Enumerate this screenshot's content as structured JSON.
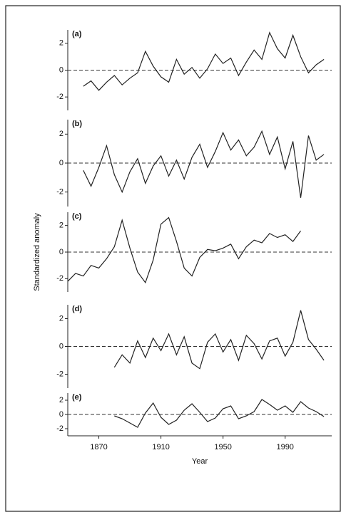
{
  "chart_data": [
    {
      "type": "line",
      "title": "(a)",
      "color": "#222222",
      "zero_line": true,
      "xlim": [
        1850,
        2020
      ],
      "ylim": [
        -3,
        3
      ],
      "yticks": [
        -2,
        0,
        2
      ],
      "x": [
        1860,
        1865,
        1870,
        1875,
        1880,
        1885,
        1890,
        1895,
        1900,
        1905,
        1910,
        1915,
        1920,
        1925,
        1930,
        1935,
        1940,
        1945,
        1950,
        1955,
        1960,
        1965,
        1970,
        1975,
        1980,
        1985,
        1990,
        1995,
        2000,
        2005,
        2010,
        2015
      ],
      "values": [
        -1.2,
        -0.8,
        -1.5,
        -0.9,
        -0.4,
        -1.1,
        -0.6,
        -0.2,
        1.4,
        0.3,
        -0.5,
        -0.9,
        0.8,
        -0.3,
        0.2,
        -0.6,
        0.1,
        1.2,
        0.5,
        0.9,
        -0.4,
        0.6,
        1.5,
        0.8,
        2.8,
        1.6,
        0.9,
        2.6,
        1.0,
        -0.2,
        0.4,
        0.8
      ]
    },
    {
      "type": "line",
      "title": "(b)",
      "color": "#222222",
      "zero_line": true,
      "xlim": [
        1850,
        2020
      ],
      "ylim": [
        -3,
        3
      ],
      "yticks": [
        -2,
        0,
        2
      ],
      "x": [
        1860,
        1865,
        1870,
        1875,
        1880,
        1885,
        1890,
        1895,
        1900,
        1905,
        1910,
        1915,
        1920,
        1925,
        1930,
        1935,
        1940,
        1945,
        1950,
        1955,
        1960,
        1965,
        1970,
        1975,
        1980,
        1985,
        1990,
        1995,
        2000,
        2005,
        2010,
        2015
      ],
      "values": [
        -0.5,
        -1.6,
        -0.3,
        1.2,
        -0.8,
        -2.0,
        -0.6,
        0.3,
        -1.4,
        -0.2,
        0.5,
        -0.9,
        0.2,
        -1.1,
        0.4,
        1.3,
        -0.3,
        0.8,
        2.1,
        0.9,
        1.6,
        0.5,
        1.1,
        2.2,
        0.6,
        1.8,
        -0.4,
        1.5,
        -2.4,
        1.9,
        0.2,
        0.6
      ]
    },
    {
      "type": "line",
      "title": "(c)",
      "color": "#222222",
      "zero_line": true,
      "ylabel": "Standardized anomaly",
      "xlim": [
        1850,
        2020
      ],
      "ylim": [
        -3,
        3
      ],
      "yticks": [
        -2,
        0,
        2
      ],
      "x": [
        1850,
        1855,
        1860,
        1865,
        1870,
        1875,
        1880,
        1885,
        1890,
        1895,
        1900,
        1905,
        1910,
        1915,
        1920,
        1925,
        1930,
        1935,
        1940,
        1945,
        1950,
        1955,
        1960,
        1965,
        1970,
        1975,
        1980,
        1985,
        1990,
        1995,
        2000
      ],
      "values": [
        -2.2,
        -1.6,
        -1.8,
        -1.0,
        -1.2,
        -0.5,
        0.4,
        2.4,
        0.3,
        -1.5,
        -2.3,
        -0.6,
        2.1,
        2.6,
        0.8,
        -1.2,
        -1.8,
        -0.4,
        0.2,
        0.1,
        0.3,
        0.6,
        -0.5,
        0.4,
        0.9,
        0.7,
        1.4,
        1.1,
        1.3,
        0.8,
        1.6
      ]
    },
    {
      "type": "line",
      "title": "(d)",
      "color": "#222222",
      "zero_line": true,
      "xlim": [
        1850,
        2020
      ],
      "ylim": [
        -3,
        3
      ],
      "yticks": [
        -2,
        0,
        2
      ],
      "x": [
        1880,
        1885,
        1890,
        1895,
        1900,
        1905,
        1910,
        1915,
        1920,
        1925,
        1930,
        1935,
        1940,
        1945,
        1950,
        1955,
        1960,
        1965,
        1970,
        1975,
        1980,
        1985,
        1990,
        1995,
        2000,
        2005,
        2010,
        2015
      ],
      "values": [
        -1.5,
        -0.6,
        -1.2,
        0.4,
        -0.8,
        0.6,
        -0.3,
        0.9,
        -0.6,
        0.7,
        -1.2,
        -1.6,
        0.3,
        0.9,
        -0.4,
        0.5,
        -1.0,
        0.8,
        0.2,
        -0.9,
        0.4,
        0.6,
        -0.7,
        0.3,
        2.6,
        0.5,
        -0.2,
        -1.0
      ]
    },
    {
      "type": "line",
      "title": "(e)",
      "color": "#222222",
      "zero_line": true,
      "xlabel": "Year",
      "xlim": [
        1850,
        2020
      ],
      "ylim": [
        -3,
        3
      ],
      "yticks": [
        -2,
        0,
        2
      ],
      "xticks": [
        1870,
        1910,
        1950,
        1990
      ],
      "x": [
        1880,
        1885,
        1890,
        1895,
        1900,
        1905,
        1910,
        1915,
        1920,
        1925,
        1930,
        1935,
        1940,
        1945,
        1950,
        1955,
        1960,
        1965,
        1970,
        1975,
        1980,
        1985,
        1990,
        1995,
        2000,
        2005,
        2010,
        2015
      ],
      "values": [
        -0.2,
        -0.6,
        -1.2,
        -1.8,
        0.2,
        1.6,
        -0.4,
        -1.4,
        -0.8,
        0.6,
        1.5,
        0.3,
        -1.0,
        -0.5,
        0.8,
        1.2,
        -0.6,
        -0.2,
        0.4,
        2.1,
        1.4,
        0.6,
        1.2,
        0.3,
        1.8,
        0.9,
        0.4,
        -0.3
      ]
    }
  ]
}
